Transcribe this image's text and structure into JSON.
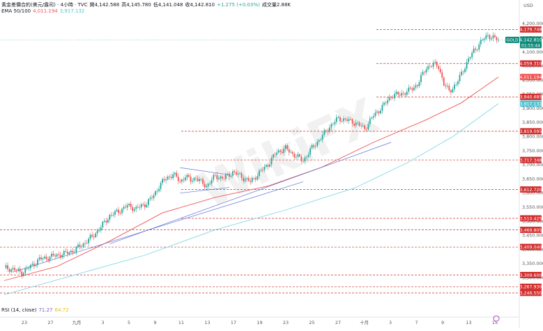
{
  "header": {
    "symbol": "黃金差價合約(美元/盎司) · 4小時 · TVC",
    "open_label": "開",
    "open": "4,142.588",
    "high_label": "高",
    "high": "4,145.780",
    "low_label": "低",
    "low": "4,141.048",
    "close_label": "收",
    "close": "4,142.810",
    "change": "+1.275 (+0.03%)",
    "volume_label": "成交量",
    "volume": "2.88K",
    "ema_label": "EMA 50/100",
    "ema50": "4,011.194",
    "ema100": "3,917.132"
  },
  "rsi": {
    "label": "RSI (14, close)",
    "value1": "71.27",
    "value2": "64.72"
  },
  "colors": {
    "up": "#26a69a",
    "down": "#ef5350",
    "ema50": "#ef5350",
    "ema100": "#7fd8e4",
    "gold_tag": "#0f8a7a",
    "level_line": "#d32f2f",
    "trend": "#5b6fd6"
  },
  "chart_data": {
    "type": "candlestick",
    "title": "",
    "currency": "USD",
    "ylim": [
      3200,
      4230
    ],
    "y_ticks": [
      "4,200.000",
      "4,150.000",
      "4,100.000",
      "4,050.000",
      "4,000.000",
      "3,950.000",
      "3,900.000",
      "3,850.000",
      "3,800.000",
      "3,750.000",
      "3,700.000",
      "3,650.000",
      "3,600.000",
      "3,550.000",
      "3,500.000",
      "3,450.000",
      "3,400.000",
      "3,350.000",
      "3,300.000"
    ],
    "y_tick_values": [
      4200,
      4150,
      4100,
      4050,
      4000,
      3950,
      3900,
      3850,
      3800,
      3750,
      3700,
      3650,
      3600,
      3550,
      3500,
      3450,
      3400,
      3350,
      3300
    ],
    "x_labels": [
      "23",
      "27",
      "九月",
      "3",
      "5",
      "9",
      "11",
      "13",
      "17",
      "19",
      "23",
      "25",
      "27",
      "十月",
      "3",
      "7",
      "9",
      "13",
      "15"
    ],
    "levels": [
      4179.748,
      4059.31,
      3940.685,
      3819.095,
      3717.348,
      3612.72,
      3510.425,
      3469.805,
      3409.04,
      3309.6,
      3267.93,
      3246.55
    ],
    "level_labels": [
      "4,179.748",
      "4,059.310",
      "3,940.685",
      "3,819.095",
      "3,717.348",
      "3,612.720",
      "3,510.425",
      "3,469.805",
      "3,409.040",
      "3,309.600",
      "3,267.930",
      "3,246.550"
    ],
    "current_price": {
      "symbol": "GOLD",
      "price": "4,142.810",
      "countdown": "01:55:44",
      "value": 4142.81
    },
    "ema50_last": {
      "label": "4,011.194",
      "value": 4011.194
    },
    "ema100_last": {
      "label": "3,917.132",
      "value": 3917.132
    },
    "close_path": [
      [
        0,
        3335
      ],
      [
        5,
        3330
      ],
      [
        10,
        3318
      ],
      [
        15,
        3340
      ],
      [
        20,
        3365
      ],
      [
        25,
        3372
      ],
      [
        30,
        3380
      ],
      [
        35,
        3386
      ],
      [
        40,
        3398
      ],
      [
        45,
        3420
      ],
      [
        50,
        3445
      ],
      [
        55,
        3480
      ],
      [
        60,
        3520
      ],
      [
        65,
        3535
      ],
      [
        70,
        3555
      ],
      [
        75,
        3545
      ],
      [
        80,
        3560
      ],
      [
        85,
        3590
      ],
      [
        88,
        3625
      ],
      [
        90,
        3640
      ],
      [
        93,
        3655
      ],
      [
        96,
        3668
      ],
      [
        100,
        3640
      ],
      [
        103,
        3660
      ],
      [
        106,
        3645
      ],
      [
        109,
        3655
      ],
      [
        112,
        3638
      ],
      [
        115,
        3625
      ],
      [
        120,
        3660
      ],
      [
        125,
        3652
      ],
      [
        130,
        3675
      ],
      [
        135,
        3658
      ],
      [
        140,
        3640
      ],
      [
        145,
        3672
      ],
      [
        150,
        3702
      ],
      [
        155,
        3745
      ],
      [
        160,
        3758
      ],
      [
        165,
        3735
      ],
      [
        170,
        3715
      ],
      [
        175,
        3760
      ],
      [
        180,
        3795
      ],
      [
        185,
        3835
      ],
      [
        190,
        3865
      ],
      [
        195,
        3858
      ],
      [
        200,
        3848
      ],
      [
        205,
        3828
      ],
      [
        210,
        3875
      ],
      [
        215,
        3905
      ],
      [
        220,
        3945
      ],
      [
        225,
        3950
      ],
      [
        230,
        3962
      ],
      [
        235,
        3985
      ],
      [
        240,
        4045
      ],
      [
        244,
        4056
      ],
      [
        247,
        4050
      ],
      [
        250,
        3985
      ],
      [
        253,
        3962
      ],
      [
        257,
        3985
      ],
      [
        262,
        4050
      ],
      [
        267,
        4105
      ],
      [
        272,
        4142
      ],
      [
        275,
        4160
      ],
      [
        278,
        4150
      ],
      [
        281,
        4142.81
      ]
    ],
    "ema50_path": [
      [
        0,
        3290
      ],
      [
        30,
        3340
      ],
      [
        60,
        3430
      ],
      [
        90,
        3530
      ],
      [
        120,
        3585
      ],
      [
        150,
        3625
      ],
      [
        180,
        3690
      ],
      [
        210,
        3780
      ],
      [
        240,
        3860
      ],
      [
        260,
        3920
      ],
      [
        281,
        4011.194
      ]
    ],
    "ema100_path": [
      [
        0,
        3240
      ],
      [
        40,
        3310
      ],
      [
        80,
        3380
      ],
      [
        120,
        3470
      ],
      [
        160,
        3540
      ],
      [
        200,
        3620
      ],
      [
        230,
        3710
      ],
      [
        255,
        3800
      ],
      [
        281,
        3917.132
      ]
    ],
    "trendlines": [
      {
        "from": [
          5,
          3320
        ],
        "to": [
          170,
          3640
        ]
      },
      {
        "from": [
          60,
          3420
        ],
        "to": [
          220,
          3780
        ]
      },
      {
        "from": [
          100,
          3690
        ],
        "to": [
          128,
          3665
        ]
      },
      {
        "from": [
          100,
          3600
        ],
        "to": [
          128,
          3620
        ]
      }
    ]
  }
}
